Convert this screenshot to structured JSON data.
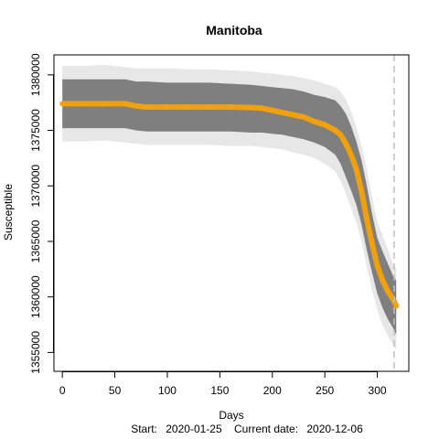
{
  "chart_data": {
    "type": "line",
    "title": "Manitoba",
    "xlabel": "Days",
    "ylabel": "Susceptible",
    "footnote": {
      "start_label": "Start:",
      "start_date": "2020-01-25",
      "current_label": "Current date:",
      "current_date": "2020-12-06"
    },
    "xlim": [
      -8,
      330
    ],
    "ylim": [
      1353300,
      1381800
    ],
    "x_ticks": [
      0,
      50,
      100,
      150,
      200,
      250,
      300
    ],
    "y_ticks": [
      1355000,
      1360000,
      1365000,
      1370000,
      1375000,
      1380000
    ],
    "current_day_line": 316,
    "colors": {
      "band_outer": "#cfcfcf",
      "band_inner": "#7f7f7f",
      "median": "#f5a20a",
      "current_day_line": "#bfbfbf"
    },
    "series": [
      {
        "x": [
          0,
          20,
          40,
          60,
          70,
          80,
          100,
          120,
          140,
          160,
          180,
          190,
          200,
          210,
          220,
          230,
          240,
          250,
          260,
          265,
          270,
          275,
          280,
          285,
          290,
          295,
          300,
          305,
          310,
          315,
          318
        ],
        "median": [
          1377400,
          1377400,
          1377400,
          1377400,
          1377200,
          1377100,
          1377100,
          1377100,
          1377100,
          1377100,
          1377050,
          1377000,
          1376800,
          1376600,
          1376400,
          1376200,
          1375800,
          1375500,
          1375000,
          1374600,
          1373800,
          1372800,
          1371500,
          1369500,
          1367000,
          1364800,
          1362800,
          1361500,
          1360500,
          1359800,
          1359200
        ],
        "inner_upper": [
          1379600,
          1379600,
          1379600,
          1379600,
          1379400,
          1379400,
          1379300,
          1379300,
          1379300,
          1379200,
          1379100,
          1379000,
          1378900,
          1378800,
          1378700,
          1378500,
          1378200,
          1378000,
          1377700,
          1377200,
          1376500,
          1375400,
          1374000,
          1372300,
          1370000,
          1367500,
          1365300,
          1364100,
          1363000,
          1361900,
          1361500
        ],
        "inner_lower": [
          1375200,
          1375200,
          1375200,
          1375200,
          1375000,
          1374900,
          1374900,
          1374900,
          1374900,
          1374900,
          1374800,
          1374800,
          1374700,
          1374600,
          1374400,
          1374200,
          1373900,
          1373500,
          1372800,
          1372000,
          1370800,
          1369600,
          1368300,
          1366500,
          1364200,
          1362200,
          1360300,
          1359000,
          1358000,
          1357200,
          1356600
        ],
        "outer_upper": [
          1380800,
          1380800,
          1380900,
          1380700,
          1380600,
          1380600,
          1380600,
          1380500,
          1380500,
          1380400,
          1380300,
          1380200,
          1380100,
          1380000,
          1379900,
          1379700,
          1379500,
          1379200,
          1378900,
          1378500,
          1377800,
          1376700,
          1375300,
          1373600,
          1371500,
          1369000,
          1366800,
          1365500,
          1364300,
          1363000,
          1362500
        ],
        "outer_lower": [
          1374000,
          1374000,
          1374100,
          1373900,
          1373800,
          1373700,
          1373700,
          1373700,
          1373700,
          1373600,
          1373600,
          1373500,
          1373400,
          1373300,
          1373000,
          1372800,
          1372500,
          1372000,
          1371300,
          1370500,
          1369300,
          1368000,
          1366700,
          1365000,
          1362700,
          1360600,
          1358800,
          1357500,
          1356500,
          1355700,
          1355200
        ]
      }
    ]
  }
}
